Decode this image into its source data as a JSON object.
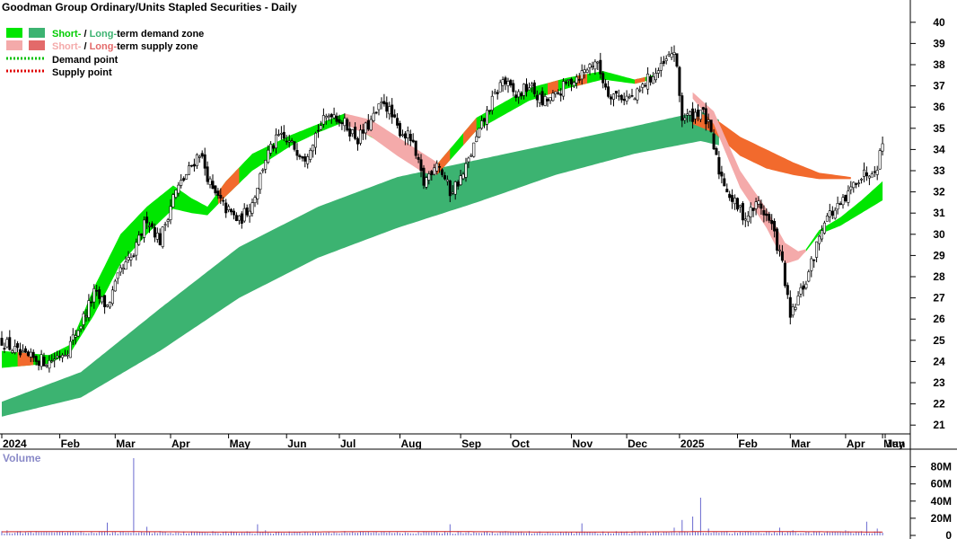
{
  "chart_data": {
    "type": "candlestick",
    "title": "Goodman Group Ordinary/Units Stapled Securities - Daily",
    "legend": [
      {
        "label_a": "Short-",
        "label_sep": " / ",
        "label_b": "Long-",
        "label_rest": "term demand zone",
        "color_short": "#00e600",
        "color_long": "#3cb371"
      },
      {
        "label_a": "Short-",
        "label_sep": " / ",
        "label_b": "Long-",
        "label_rest": "term supply zone",
        "color_short": "#f4aaaa",
        "color_long": "#e36a6a"
      },
      {
        "label": "Demand point",
        "color": "#00c000",
        "style": "dotted"
      },
      {
        "label": "Supply point",
        "color": "#e00000",
        "style": "dotted"
      }
    ],
    "legend_placement": "top-left",
    "price_axis": {
      "ticks": [
        21,
        22,
        23,
        24,
        25,
        26,
        27,
        28,
        29,
        30,
        31,
        32,
        33,
        34,
        35,
        36,
        37,
        38,
        39,
        40
      ],
      "ylim": [
        20.5,
        40.5
      ],
      "side": "right"
    },
    "x_ticks": [
      "2024",
      "Feb",
      "Mar",
      "Apr",
      "May",
      "Jun",
      "Jul",
      "Aug",
      "Sep",
      "Oct",
      "Nov",
      "Dec",
      "2025",
      "Feb",
      "Mar",
      "Apr",
      "May",
      "Jun"
    ],
    "volume": {
      "label": "Volume",
      "ticks": [
        "80M",
        "60M",
        "40M",
        "20M",
        "0"
      ],
      "ylim": [
        0,
        90
      ]
    },
    "price_anchors": [
      [
        0,
        25.0
      ],
      [
        8,
        24.2
      ],
      [
        18,
        24.0
      ],
      [
        25,
        24.6
      ],
      [
        30,
        25.8
      ],
      [
        35,
        27.2
      ],
      [
        40,
        26.6
      ],
      [
        45,
        28.2
      ],
      [
        50,
        29.0
      ],
      [
        55,
        30.8
      ],
      [
        60,
        29.7
      ],
      [
        65,
        31.8
      ],
      [
        70,
        32.8
      ],
      [
        75,
        33.9
      ],
      [
        80,
        32.0
      ],
      [
        85,
        31.2
      ],
      [
        90,
        30.6
      ],
      [
        95,
        31.5
      ],
      [
        100,
        33.6
      ],
      [
        105,
        34.6
      ],
      [
        110,
        34.2
      ],
      [
        115,
        33.7
      ],
      [
        120,
        35.0
      ],
      [
        125,
        35.8
      ],
      [
        130,
        35.2
      ],
      [
        135,
        34.5
      ],
      [
        140,
        35.3
      ],
      [
        145,
        36.3
      ],
      [
        150,
        35.0
      ],
      [
        155,
        34.5
      ],
      [
        160,
        32.4
      ],
      [
        165,
        33.5
      ],
      [
        170,
        32.0
      ],
      [
        175,
        32.8
      ],
      [
        180,
        34.5
      ],
      [
        185,
        36.0
      ],
      [
        190,
        37.3
      ],
      [
        195,
        36.5
      ],
      [
        200,
        37.0
      ],
      [
        205,
        36.2
      ],
      [
        210,
        36.5
      ],
      [
        215,
        37.2
      ],
      [
        220,
        37.6
      ],
      [
        225,
        38.2
      ],
      [
        230,
        36.7
      ],
      [
        235,
        36.5
      ],
      [
        240,
        36.4
      ],
      [
        245,
        37.3
      ],
      [
        250,
        37.8
      ],
      [
        255,
        38.7
      ],
      [
        258,
        35.5
      ],
      [
        262,
        35.6
      ],
      [
        265,
        35.9
      ],
      [
        268,
        35.1
      ],
      [
        272,
        33.0
      ],
      [
        277,
        31.6
      ],
      [
        282,
        30.8
      ],
      [
        287,
        31.5
      ],
      [
        292,
        30.4
      ],
      [
        296,
        28.6
      ],
      [
        299,
        26.0
      ],
      [
        302,
        27.0
      ],
      [
        305,
        27.8
      ],
      [
        308,
        29.0
      ],
      [
        312,
        30.8
      ],
      [
        316,
        31.1
      ],
      [
        320,
        31.6
      ],
      [
        324,
        32.6
      ],
      [
        328,
        32.9
      ],
      [
        332,
        33.3
      ],
      [
        334,
        34.3
      ]
    ],
    "demand_short_upper": [
      [
        0,
        24.5
      ],
      [
        18,
        24.3
      ],
      [
        26,
        24.8
      ],
      [
        35,
        27.5
      ],
      [
        45,
        30.0
      ],
      [
        55,
        31.3
      ],
      [
        65,
        32.3
      ],
      [
        72,
        31.7
      ],
      [
        78,
        31.3
      ],
      [
        85,
        32.5
      ],
      [
        95,
        33.8
      ],
      [
        110,
        34.7
      ],
      [
        120,
        35.2
      ],
      [
        130,
        35.7
      ],
      [
        165,
        33.3
      ],
      [
        180,
        35.5
      ],
      [
        200,
        36.9
      ],
      [
        215,
        37.4
      ],
      [
        228,
        37.7
      ],
      [
        240,
        37.3
      ],
      [
        247,
        37.5
      ]
    ],
    "demand_short_lower": [
      [
        0,
        23.7
      ],
      [
        18,
        23.9
      ],
      [
        26,
        24.4
      ],
      [
        35,
        26.2
      ],
      [
        45,
        28.6
      ],
      [
        55,
        30.0
      ],
      [
        65,
        31.2
      ],
      [
        72,
        31.0
      ],
      [
        78,
        30.9
      ],
      [
        85,
        31.8
      ],
      [
        95,
        33.0
      ],
      [
        110,
        34.2
      ],
      [
        120,
        34.8
      ],
      [
        130,
        35.3
      ],
      [
        165,
        32.8
      ],
      [
        180,
        34.9
      ],
      [
        200,
        36.3
      ],
      [
        215,
        36.9
      ],
      [
        228,
        37.3
      ],
      [
        240,
        37.1
      ],
      [
        247,
        37.3
      ]
    ],
    "demand_long_upper": [
      [
        0,
        22.1
      ],
      [
        30,
        23.5
      ],
      [
        60,
        26.5
      ],
      [
        90,
        29.4
      ],
      [
        120,
        31.3
      ],
      [
        150,
        32.7
      ],
      [
        180,
        33.5
      ],
      [
        210,
        34.3
      ],
      [
        240,
        35.1
      ],
      [
        265,
        35.8
      ],
      [
        272,
        35.4
      ]
    ],
    "demand_long_lower": [
      [
        0,
        21.4
      ],
      [
        30,
        22.3
      ],
      [
        60,
        24.5
      ],
      [
        90,
        27.0
      ],
      [
        120,
        28.9
      ],
      [
        150,
        30.3
      ],
      [
        180,
        31.5
      ],
      [
        210,
        32.8
      ],
      [
        240,
        33.8
      ],
      [
        265,
        34.4
      ],
      [
        272,
        34.2
      ]
    ],
    "supply_long_upper": [
      [
        262,
        35.8
      ],
      [
        270,
        35.5
      ],
      [
        280,
        34.6
      ],
      [
        290,
        34.0
      ],
      [
        300,
        33.4
      ],
      [
        310,
        32.9
      ],
      [
        322,
        32.7
      ]
    ],
    "supply_long_lower": [
      [
        262,
        35.2
      ],
      [
        270,
        34.8
      ],
      [
        280,
        33.7
      ],
      [
        290,
        33.1
      ],
      [
        300,
        32.8
      ],
      [
        310,
        32.6
      ],
      [
        322,
        32.6
      ]
    ],
    "supply_short_upper": [
      [
        262,
        36.7
      ],
      [
        270,
        35.8
      ],
      [
        280,
        33.0
      ],
      [
        290,
        31.2
      ],
      [
        297,
        29.6
      ],
      [
        302,
        29.2
      ],
      [
        305,
        29.3
      ]
    ],
    "supply_short_lower": [
      [
        262,
        36.4
      ],
      [
        270,
        35.2
      ],
      [
        280,
        32.2
      ],
      [
        290,
        30.3
      ],
      [
        297,
        28.6
      ],
      [
        302,
        28.8
      ],
      [
        305,
        29.2
      ]
    ],
    "demand_short2_upper": [
      [
        305,
        29.3
      ],
      [
        310,
        30.2
      ],
      [
        318,
        30.8
      ],
      [
        326,
        31.6
      ],
      [
        334,
        32.5
      ]
    ],
    "demand_short2_lower": [
      [
        305,
        29.2
      ],
      [
        310,
        30.0
      ],
      [
        318,
        30.4
      ],
      [
        326,
        31.0
      ],
      [
        334,
        31.6
      ]
    ],
    "volume_spikes": [
      [
        0,
        5
      ],
      [
        2,
        6
      ],
      [
        7,
        5
      ],
      [
        14,
        4
      ],
      [
        30,
        5
      ],
      [
        40,
        15
      ],
      [
        50,
        90
      ],
      [
        55,
        10
      ],
      [
        60,
        5
      ],
      [
        80,
        5
      ],
      [
        97,
        13
      ],
      [
        100,
        6
      ],
      [
        130,
        5
      ],
      [
        170,
        13
      ],
      [
        200,
        5
      ],
      [
        220,
        14
      ],
      [
        240,
        5
      ],
      [
        255,
        9
      ],
      [
        258,
        18
      ],
      [
        262,
        22
      ],
      [
        265,
        44
      ],
      [
        268,
        8
      ],
      [
        275,
        5
      ],
      [
        295,
        9
      ],
      [
        300,
        6
      ],
      [
        320,
        6
      ],
      [
        328,
        16
      ],
      [
        332,
        8
      ]
    ]
  }
}
